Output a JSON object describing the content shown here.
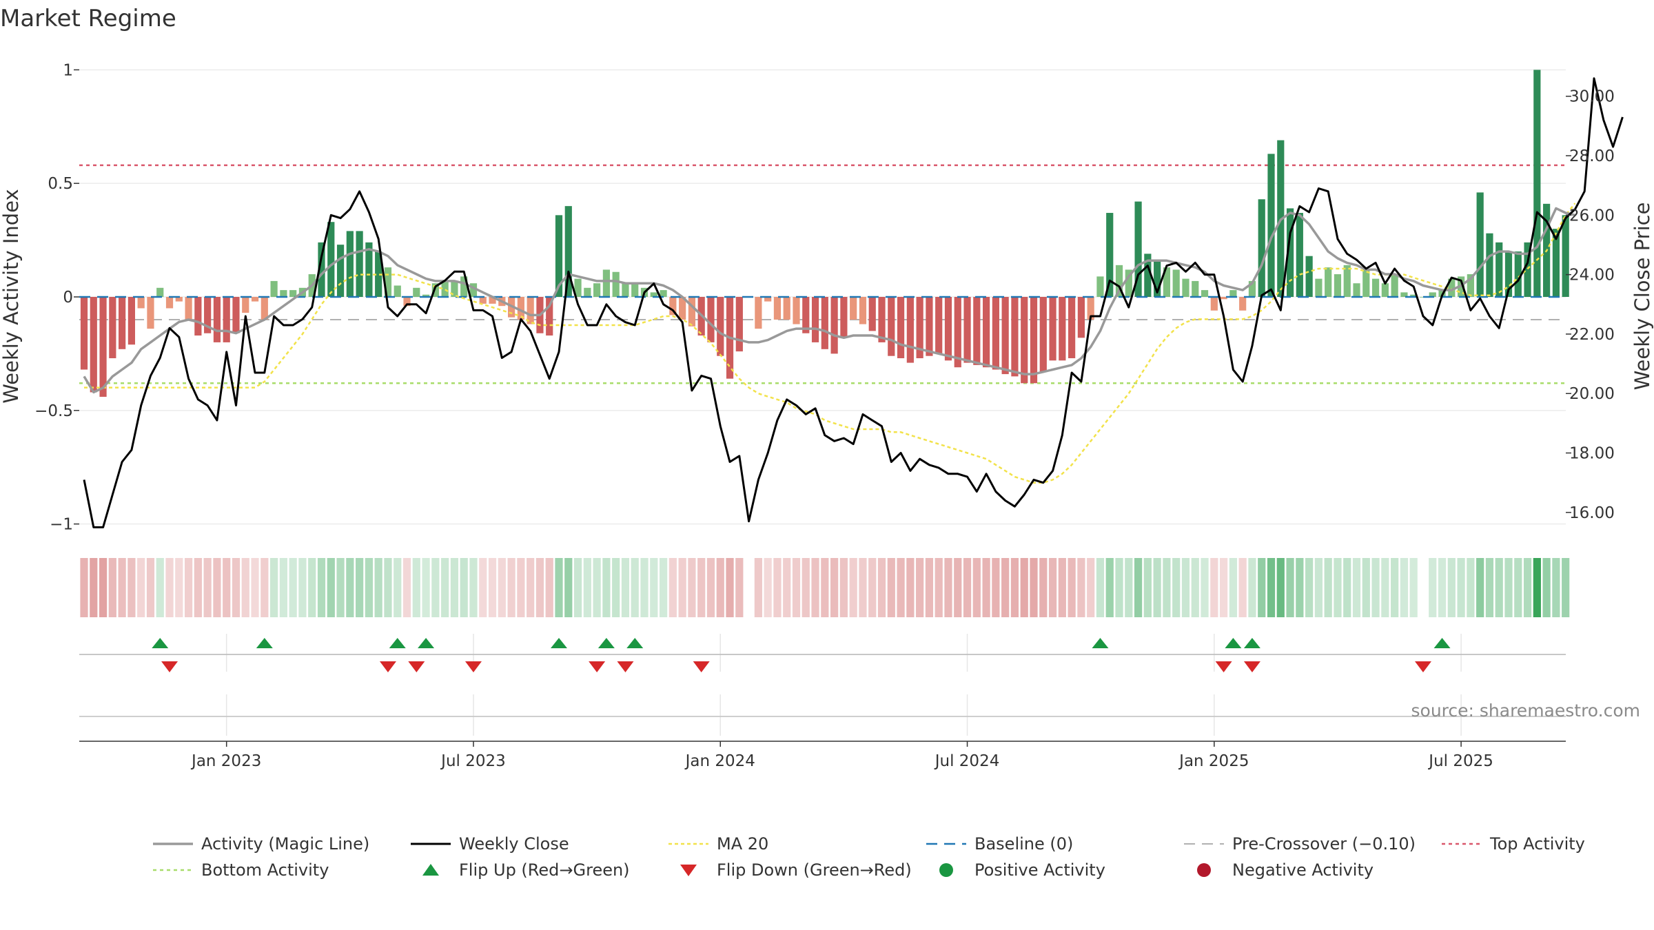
{
  "chart_data": {
    "type": "bar",
    "title": "Market Regime",
    "source": "source: sharemaestro.com",
    "y_left": {
      "label": "Weekly Activity Index",
      "range": [
        -1.08,
        1.08
      ],
      "ticks": [
        1,
        0.5,
        0,
        -0.5,
        -1
      ],
      "tick_labels": [
        "1",
        "0.5",
        "0",
        "−0.5",
        "−1"
      ]
    },
    "y_right": {
      "label": "Weekly Close Price",
      "range": [
        15.0,
        31.5
      ],
      "ticks": [
        30,
        28,
        26,
        24,
        22,
        20,
        18,
        16
      ],
      "tick_labels": [
        "30.00",
        "28.00",
        "26.00",
        "24.00",
        "22.00",
        "20.00",
        "18.00",
        "16.00"
      ]
    },
    "x_axis": {
      "tick_labels": [
        "Jan 2023",
        "Jul 2023",
        "Jan 2024",
        "Jul 2024",
        "Jan 2025",
        "Jul 2025"
      ],
      "tick_weeks": [
        15,
        41,
        67,
        93,
        119,
        145
      ]
    },
    "reference_lines": {
      "baseline": 0,
      "pre_crossover": -0.1,
      "top_activity": 0.58,
      "bottom_activity": -0.38
    },
    "colors": {
      "strong_pos": "#2e8b57",
      "weak_pos": "#7fbf7f",
      "strong_neg": "#cd5c5c",
      "weak_neg": "#e9967a",
      "magic_line": "#999999",
      "close": "#000000",
      "ma20": "#f2e24a",
      "baseline": "#1f77b4",
      "pre_crossover": "#b0b0b0",
      "top": "#d9576b",
      "bottom": "#a8dc6a",
      "flip_up": "#1a9641",
      "flip_down": "#d62728",
      "pos_dot": "#1a9641",
      "neg_dot": "#b2182b"
    },
    "activity": [
      -0.32,
      -0.42,
      -0.44,
      -0.27,
      -0.23,
      -0.21,
      -0.05,
      -0.14,
      0.04,
      -0.05,
      -0.02,
      -0.1,
      -0.17,
      -0.16,
      -0.2,
      -0.2,
      -0.16,
      -0.07,
      -0.02,
      -0.1,
      0.07,
      0.03,
      0.03,
      0.04,
      0.1,
      0.24,
      0.33,
      0.23,
      0.29,
      0.29,
      0.24,
      0.2,
      0.13,
      0.05,
      -0.04,
      0.04,
      0.01,
      0.06,
      0.07,
      0.07,
      0.09,
      0.06,
      -0.03,
      -0.03,
      -0.04,
      -0.09,
      -0.1,
      -0.12,
      -0.16,
      -0.17,
      0.36,
      0.4,
      0.08,
      0.04,
      0.06,
      0.12,
      0.11,
      0.06,
      0.06,
      0.04,
      0.02,
      0.03,
      -0.08,
      -0.1,
      -0.13,
      -0.17,
      -0.2,
      -0.26,
      -0.36,
      -0.24,
      0,
      -0.14,
      -0.02,
      -0.1,
      -0.1,
      -0.12,
      -0.16,
      -0.2,
      -0.23,
      -0.25,
      -0.18,
      -0.1,
      -0.12,
      -0.15,
      -0.2,
      -0.26,
      -0.27,
      -0.29,
      -0.27,
      -0.26,
      -0.25,
      -0.28,
      -0.31,
      -0.29,
      -0.3,
      -0.31,
      -0.32,
      -0.34,
      -0.35,
      -0.38,
      -0.38,
      -0.33,
      -0.28,
      -0.28,
      -0.27,
      -0.18,
      -0.1,
      0.09,
      0.37,
      0.14,
      0.12,
      0.42,
      0.19,
      0.16,
      0.13,
      0.12,
      0.08,
      0.07,
      0.03,
      -0.06,
      -0.01,
      0.03,
      -0.06,
      0.07,
      0.43,
      0.63,
      0.69,
      0.39,
      0.37,
      0.18,
      0.08,
      0.13,
      0.1,
      0.14,
      0.06,
      0.12,
      0.08,
      0.06,
      0.1,
      0.02,
      0.01,
      0,
      0.02,
      0.03,
      0.08,
      0.09,
      0.1,
      0.46,
      0.28,
      0.24,
      0.2,
      0.2,
      0.24,
      1,
      0.41,
      0.3,
      0.36
    ],
    "magic_line": [
      -0.35,
      -0.42,
      -0.4,
      -0.35,
      -0.32,
      -0.29,
      -0.23,
      -0.2,
      -0.17,
      -0.14,
      -0.11,
      -0.1,
      -0.11,
      -0.13,
      -0.15,
      -0.15,
      -0.16,
      -0.14,
      -0.12,
      -0.1,
      -0.07,
      -0.04,
      -0.01,
      0.02,
      0.05,
      0.1,
      0.14,
      0.17,
      0.19,
      0.2,
      0.21,
      0.2,
      0.18,
      0.14,
      0.12,
      0.1,
      0.08,
      0.07,
      0.07,
      0.07,
      0.06,
      0.04,
      0.02,
      0,
      -0.02,
      -0.04,
      -0.06,
      -0.08,
      -0.08,
      -0.04,
      0.05,
      0.1,
      0.09,
      0.08,
      0.07,
      0.07,
      0.07,
      0.06,
      0.06,
      0.06,
      0.06,
      0.05,
      0.03,
      0,
      -0.04,
      -0.08,
      -0.12,
      -0.16,
      -0.18,
      -0.19,
      -0.2,
      -0.2,
      -0.19,
      -0.17,
      -0.15,
      -0.14,
      -0.14,
      -0.14,
      -0.15,
      -0.17,
      -0.18,
      -0.17,
      -0.17,
      -0.17,
      -0.18,
      -0.19,
      -0.21,
      -0.22,
      -0.23,
      -0.24,
      -0.25,
      -0.26,
      -0.27,
      -0.28,
      -0.29,
      -0.3,
      -0.31,
      -0.32,
      -0.33,
      -0.34,
      -0.34,
      -0.33,
      -0.32,
      -0.31,
      -0.3,
      -0.27,
      -0.22,
      -0.15,
      -0.05,
      0.03,
      0.09,
      0.14,
      0.16,
      0.16,
      0.16,
      0.15,
      0.14,
      0.13,
      0.11,
      0.07,
      0.05,
      0.04,
      0.03,
      0.06,
      0.14,
      0.26,
      0.34,
      0.37,
      0.36,
      0.32,
      0.26,
      0.2,
      0.17,
      0.15,
      0.14,
      0.12,
      0.12,
      0.1,
      0.1,
      0.08,
      0.07,
      0.05,
      0.04,
      0.03,
      0.03,
      0.05,
      0.08,
      0.13,
      0.18,
      0.2,
      0.2,
      0.19,
      0.19,
      0.22,
      0.3,
      0.39,
      0.37,
      0.36
    ],
    "close": [
      17.1,
      15.5,
      15.5,
      16.6,
      17.7,
      18.1,
      19.6,
      20.6,
      21.2,
      22.2,
      21.9,
      20.5,
      19.8,
      19.6,
      19.1,
      21.4,
      19.6,
      22.6,
      20.7,
      20.7,
      22.6,
      22.3,
      22.3,
      22.5,
      22.9,
      24.6,
      26.0,
      25.9,
      26.2,
      26.8,
      26.1,
      25.2,
      22.9,
      22.6,
      23.0,
      23.0,
      22.7,
      23.6,
      23.8,
      24.1,
      24.1,
      22.8,
      22.8,
      22.6,
      21.2,
      21.4,
      22.5,
      22.1,
      21.3,
      20.5,
      21.4,
      24.1,
      23.0,
      22.3,
      22.3,
      23.0,
      22.6,
      22.4,
      22.3,
      23.4,
      23.7,
      23.0,
      22.8,
      22.4,
      20.1,
      20.6,
      20.5,
      18.9,
      17.7,
      17.9,
      15.7,
      17.1,
      18.0,
      19.1,
      19.8,
      19.6,
      19.3,
      19.5,
      18.6,
      18.4,
      18.5,
      18.3,
      19.3,
      19.1,
      18.9,
      17.7,
      18.0,
      17.4,
      17.8,
      17.6,
      17.5,
      17.3,
      17.3,
      17.2,
      16.7,
      17.3,
      16.7,
      16.4,
      16.2,
      16.6,
      17.1,
      17.0,
      17.4,
      18.6,
      20.7,
      20.4,
      22.6,
      22.6,
      23.8,
      23.6,
      22.9,
      24.0,
      24.3,
      23.4,
      24.3,
      24.4,
      24.1,
      24.4,
      24.0,
      24.0,
      22.6,
      20.8,
      20.4,
      21.6,
      23.3,
      23.5,
      22.8,
      25.4,
      26.3,
      26.1,
      26.9,
      26.8,
      25.2,
      24.7,
      24.5,
      24.2,
      24.4,
      23.7,
      24.2,
      23.8,
      23.6,
      22.6,
      22.3,
      23.3,
      23.9,
      23.8,
      22.8,
      23.2,
      22.6,
      22.2,
      23.5,
      23.8,
      24.4,
      26.1,
      25.8,
      25.2,
      25.9,
      26.2,
      26.8,
      30.6,
      29.2,
      28.3,
      29.3
    ],
    "ma20": [
      20.2,
      20.2,
      20.2,
      20.2,
      20.2,
      20.2,
      20.2,
      20.2,
      20.2,
      20.2,
      20.2,
      20.2,
      20.2,
      20.2,
      20.2,
      20.2,
      20.2,
      20.2,
      20.2,
      20.4,
      20.8,
      21.2,
      21.6,
      22.0,
      22.5,
      23.0,
      23.4,
      23.7,
      23.9,
      24.0,
      24.0,
      24.0,
      24.0,
      24.0,
      23.9,
      23.8,
      23.7,
      23.6,
      23.5,
      23.3,
      23.2,
      23.1,
      23.0,
      22.9,
      22.8,
      22.7,
      22.6,
      22.4,
      22.3,
      22.3,
      22.3,
      22.3,
      22.3,
      22.3,
      22.3,
      22.3,
      22.3,
      22.3,
      22.3,
      22.4,
      22.5,
      22.6,
      22.6,
      22.5,
      22.3,
      22.0,
      21.7,
      21.3,
      20.9,
      20.5,
      20.2,
      20.0,
      19.9,
      19.8,
      19.7,
      19.5,
      19.4,
      19.3,
      19.1,
      19.0,
      18.9,
      18.8,
      18.8,
      18.8,
      18.8,
      18.7,
      18.7,
      18.6,
      18.5,
      18.4,
      18.3,
      18.2,
      18.1,
      18.0,
      17.9,
      17.8,
      17.6,
      17.4,
      17.2,
      17.1,
      17.0,
      17.0,
      17.1,
      17.3,
      17.6,
      18.0,
      18.4,
      18.8,
      19.2,
      19.6,
      20.0,
      20.5,
      21.0,
      21.5,
      21.9,
      22.2,
      22.4,
      22.5,
      22.5,
      22.5,
      22.5,
      22.5,
      22.5,
      22.6,
      22.8,
      23.1,
      23.5,
      23.8,
      24.0,
      24.1,
      24.2,
      24.2,
      24.2,
      24.2,
      24.2,
      24.1,
      24.0,
      24.0,
      24.0,
      24.0,
      23.9,
      23.8,
      23.7,
      23.6,
      23.5,
      23.4,
      23.3,
      23.3,
      23.3,
      23.4,
      23.6,
      23.9,
      24.2,
      24.5,
      24.8,
      25.4,
      26.0,
      26.4
    ],
    "flip_up_weeks": [
      8,
      19,
      33,
      36,
      50,
      55,
      58,
      107,
      121,
      123,
      143
    ],
    "flip_down_weeks": [
      9,
      32,
      35,
      41,
      54,
      57,
      65,
      120,
      123,
      141
    ]
  },
  "legend": {
    "items": [
      {
        "key": "magic_line",
        "label": "Activity (Magic Line)"
      },
      {
        "key": "close",
        "label": "Weekly Close"
      },
      {
        "key": "ma20",
        "label": "MA 20"
      },
      {
        "key": "baseline",
        "label": "Baseline (0)"
      },
      {
        "key": "pre_crossover",
        "label": "Pre-Crossover (−0.10)"
      },
      {
        "key": "top",
        "label": "Top Activity"
      },
      {
        "key": "bottom",
        "label": "Bottom Activity"
      },
      {
        "key": "flip_up",
        "label": "Flip Up (Red→Green)"
      },
      {
        "key": "flip_down",
        "label": "Flip Down (Green→Red)"
      },
      {
        "key": "pos_dot",
        "label": "Positive Activity"
      },
      {
        "key": "neg_dot",
        "label": "Negative Activity"
      }
    ]
  }
}
